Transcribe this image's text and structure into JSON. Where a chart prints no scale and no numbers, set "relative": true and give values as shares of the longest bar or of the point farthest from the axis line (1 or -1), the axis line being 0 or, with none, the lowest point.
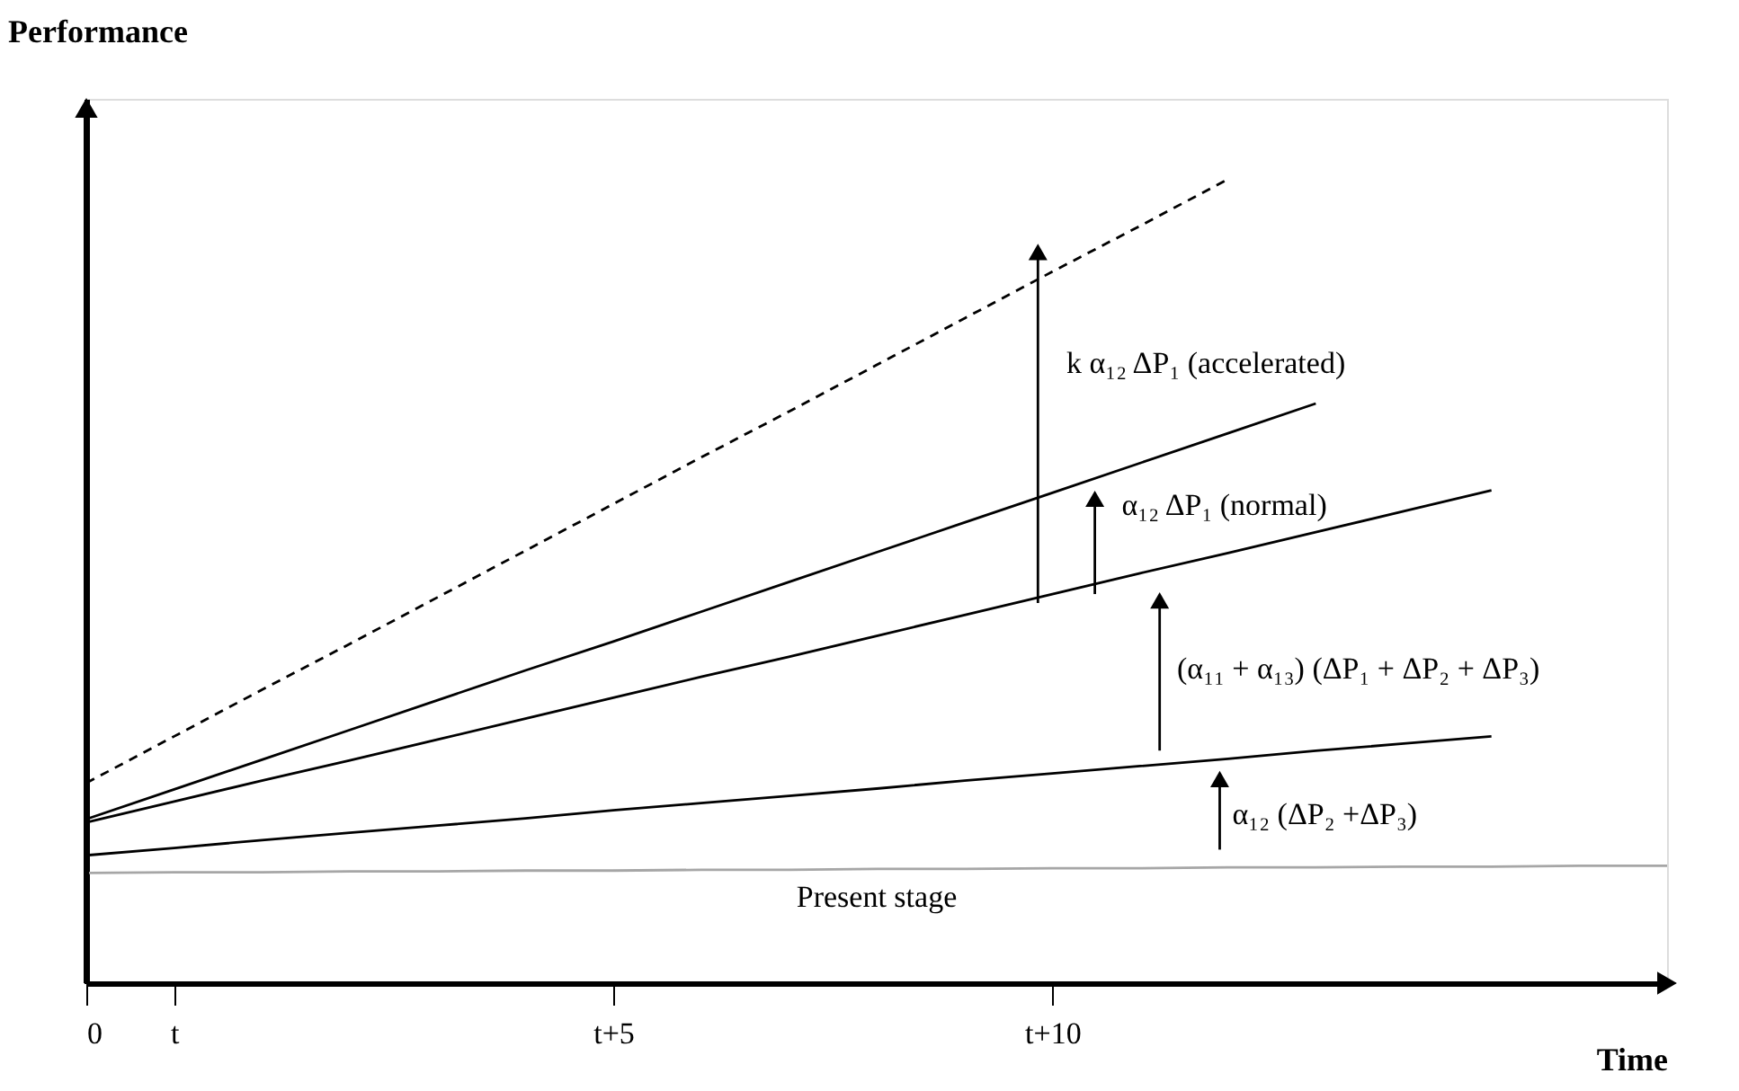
{
  "chart_data": {
    "type": "line",
    "relative": true,
    "xlabel": "Time",
    "ylabel": "Performance",
    "categories": [
      "0",
      "t",
      null,
      null,
      null,
      null,
      "t+5",
      null,
      null,
      null,
      null,
      "t+10",
      null,
      null,
      null,
      null,
      null,
      null,
      null
    ],
    "series": [
      {
        "color": "#000000",
        "line_style": "dashed",
        "values": [
          0.249,
          0.307,
          0.365,
          0.422,
          0.48,
          0.538,
          0.596,
          0.654,
          0.711,
          0.769,
          0.827,
          0.885,
          0.942,
          1.0,
          null,
          null,
          null,
          null,
          null
        ]
      },
      {
        "color": "#000000",
        "values": [
          0.204,
          0.241,
          0.278,
          0.315,
          0.352,
          0.389,
          0.425,
          0.462,
          0.499,
          0.536,
          0.573,
          0.61,
          0.647,
          0.684,
          0.721,
          null,
          null,
          null,
          null
        ]
      },
      {
        "color": "#000000",
        "values": [
          0.2,
          0.226,
          0.252,
          0.277,
          0.303,
          0.329,
          0.355,
          0.381,
          0.406,
          0.432,
          0.458,
          0.484,
          0.51,
          0.535,
          0.561,
          0.587,
          0.613,
          null,
          null
        ]
      },
      {
        "color": "#000000",
        "values": [
          0.159,
          0.168,
          0.178,
          0.187,
          0.196,
          0.205,
          0.215,
          0.224,
          0.233,
          0.242,
          0.252,
          0.261,
          0.27,
          0.279,
          0.289,
          0.298,
          0.307,
          null,
          null
        ]
      },
      {
        "name": "Present stage",
        "color": "#a6a6a6",
        "values": [
          0.137,
          0.138,
          0.138,
          0.139,
          0.139,
          0.14,
          0.14,
          0.141,
          0.141,
          0.142,
          0.142,
          0.143,
          0.143,
          0.144,
          0.144,
          0.145,
          0.145,
          0.146,
          0.146
        ]
      }
    ],
    "annotations": [
      "k α₁₂ ΔP₁ (accelerated)",
      "α₁₂ ΔP₁ (normal)",
      "(α₁₁ + α₁₃) (ΔP₁ + ΔP₂ + ΔP₃)",
      "α₁₂ (ΔP₂ +ΔP₃)"
    ]
  }
}
